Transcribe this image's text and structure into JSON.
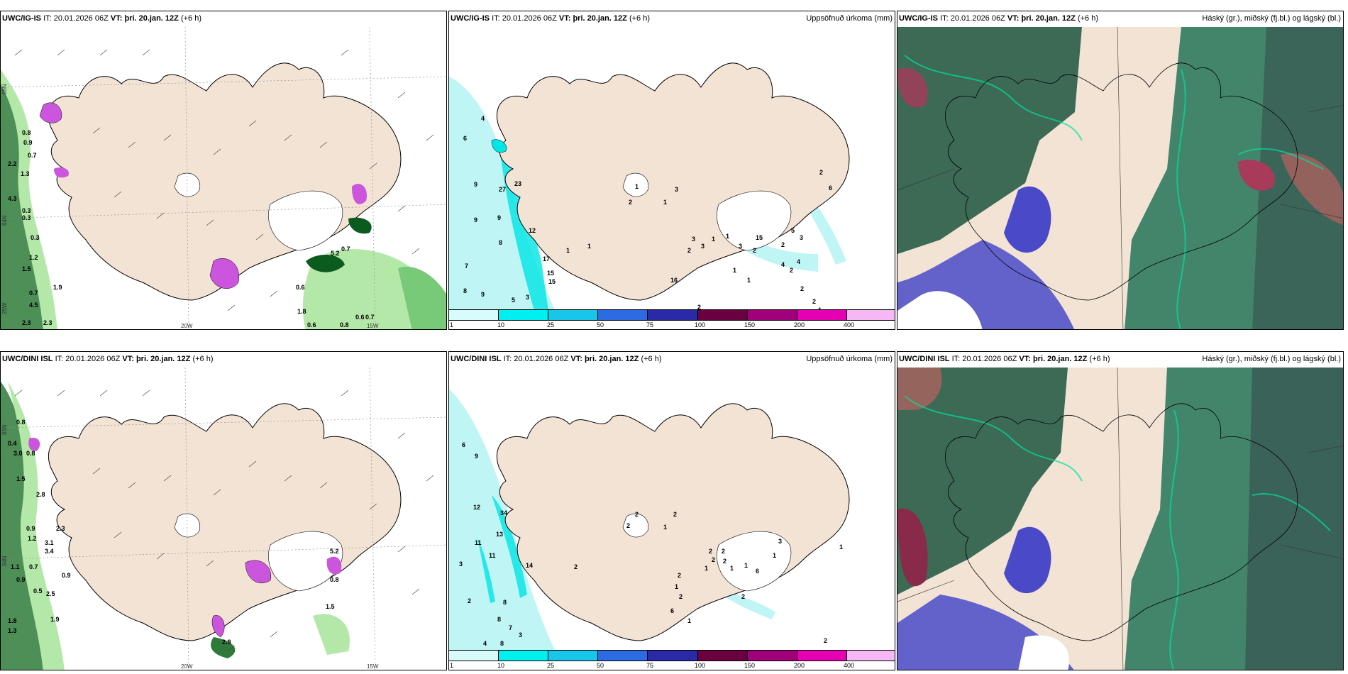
{
  "panels": [
    {
      "model": "UWC/IG-IS",
      "it_label": "IT:",
      "it_value": "20.01.2026 06Z",
      "vt_label": "VT:",
      "vt_value": "þri. 20.jan. 12Z",
      "lead": "(+6 h)",
      "field": "",
      "axes": {
        "lat1": "65N",
        "lat2": "64N",
        "lon1": "20W",
        "lon2": "15W",
        "lon3": "25W"
      },
      "labels": [
        "0.8",
        "0.9",
        "0.7",
        "2.2",
        "1.3",
        "0.3",
        "0.3",
        "4.3",
        "0.3",
        "1.2",
        "1.5",
        "1.9",
        "0.7",
        "4.5",
        "2.3",
        "2.3",
        "0.7",
        "5.2",
        "0.6",
        "1.8",
        "0.6",
        "0.7",
        "0.8",
        "0.6"
      ]
    },
    {
      "model": "UWC/IG-IS",
      "it_label": "IT:",
      "it_value": "20.01.2026 06Z",
      "vt_label": "VT:",
      "vt_value": "þri. 20.jan. 12Z",
      "lead": "(+6 h)",
      "field": "Uppsöfnuð úrkoma (mm)",
      "labels": [
        "4",
        "6",
        "9",
        "9",
        "9",
        "8",
        "7",
        "8",
        "9",
        "5",
        "3",
        "12",
        "17",
        "15",
        "15",
        "1",
        "1",
        "27",
        "23",
        "1",
        "2",
        "3",
        "1",
        "2",
        "3",
        "3",
        "1",
        "1",
        "3",
        "2",
        "15",
        "16",
        "1",
        "1",
        "2",
        "2",
        "3",
        "4",
        "2",
        "4",
        "5",
        "2",
        "2",
        "1",
        "6",
        "2"
      ]
    },
    {
      "model": "UWC/IG-IS",
      "it_label": "IT:",
      "it_value": "20.01.2026 06Z",
      "vt_label": "VT:",
      "vt_value": "þri. 20.jan. 12Z",
      "lead": "(+6 h)",
      "field": "Háský (gr.), miðský (fj.bl.) og lágský (bl.)"
    },
    {
      "model": "UWC/DINI ISL",
      "it_label": "IT:",
      "it_value": "20.01.2026 06Z",
      "vt_label": "VT:",
      "vt_value": "þri. 20.jan. 12Z",
      "lead": "(+6 h)",
      "field": "",
      "axes": {
        "lat1": "65N",
        "lat2": "64N",
        "lon1": "20W",
        "lon2": "15W"
      },
      "labels": [
        "0.8",
        "0.4",
        "3.0",
        "0.8",
        "2.8",
        "1.5",
        "0.9",
        "1.2",
        "2.3",
        "3.1",
        "3.4",
        "0.7",
        "1.1",
        "0.9",
        "0.5",
        "2.5",
        "0.9",
        "1.9",
        "1.8",
        "1.3",
        "2.9",
        "5.2",
        "0.8",
        "1.5"
      ]
    },
    {
      "model": "UWC/DINI ISL",
      "it_label": "IT:",
      "it_value": "20.01.2026 06Z",
      "vt_label": "VT:",
      "vt_value": "þri. 20.jan. 12Z",
      "lead": "(+6 h)",
      "field": "Uppsöfnuð úrkoma (mm)",
      "labels": [
        "6",
        "9",
        "12",
        "34",
        "13",
        "11",
        "11",
        "3",
        "14",
        "2",
        "8",
        "8",
        "7",
        "3",
        "4",
        "8",
        "2",
        "2",
        "2",
        "2",
        "1",
        "2",
        "2",
        "1",
        "2",
        "2",
        "1",
        "2",
        "1",
        "2",
        "6",
        "1",
        "1",
        "1",
        "2",
        "6",
        "3",
        "2",
        "1"
      ]
    },
    {
      "model": "UWC/DINI ISL",
      "it_label": "IT:",
      "it_value": "20.01.2026 06Z",
      "vt_label": "VT:",
      "vt_value": "þri. 20.jan. 12Z",
      "lead": "(+6 h)",
      "field": "Háský (gr.), miðský (fj.bl.) og lágský (bl.)"
    }
  ],
  "colorbar": {
    "colors": [
      "#d8fbfb",
      "#00f0f0",
      "#17c6e8",
      "#2d6be3",
      "#2a2aa8",
      "#6b0040",
      "#a0007a",
      "#e600b4",
      "#f5b8f5"
    ],
    "ticks": [
      "1",
      "10",
      "25",
      "50",
      "75",
      "100",
      "150",
      "200",
      "400"
    ]
  },
  "colors": {
    "land": "#f2e3d5",
    "precip_light": "#bff5f5",
    "precip_mid": "#00e5e5",
    "wind_green_light": "#b4e8a8",
    "wind_green_dark": "#0b5a1e",
    "snow_magenta": "#cc55dd",
    "cloud_high": "#2f8a55",
    "cloud_low": "#4a4ac8"
  }
}
